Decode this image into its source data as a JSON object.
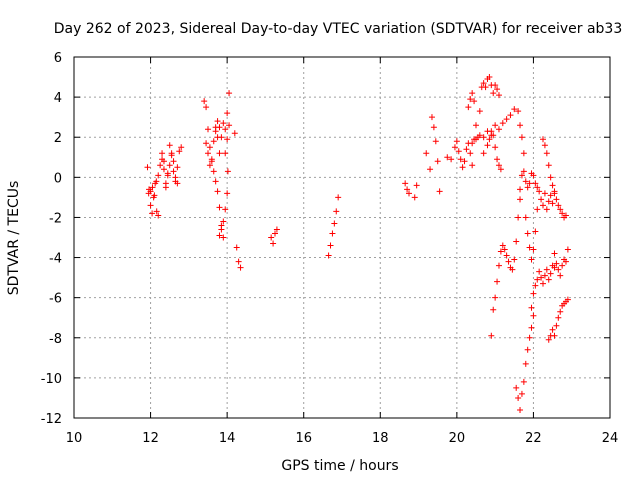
{
  "chart_data": {
    "type": "scatter",
    "title": "Day 262 of 2023, Sidereal Day-to-day VTEC variation (SDTVAR) for receiver ab33",
    "xlabel": "GPS time / hours",
    "ylabel": "SDTVAR / TECUs",
    "xlim": [
      10,
      24
    ],
    "ylim": [
      -12,
      6
    ],
    "xticks": [
      10,
      12,
      14,
      16,
      18,
      20,
      22,
      24
    ],
    "yticks": [
      -12,
      -10,
      -8,
      -6,
      -4,
      -2,
      0,
      2,
      4,
      6
    ],
    "xtick_labels": [
      "10",
      "12",
      "14",
      "16",
      "18",
      "20",
      "22",
      "24"
    ],
    "ytick_labels": [
      "-12",
      "-10",
      "-8",
      "-6",
      "-4",
      "-2",
      "0",
      "2",
      "4",
      "6"
    ],
    "grid": true,
    "marker": "plus",
    "marker_color": "#ff0000",
    "segments": [
      {
        "x": [
          11.92,
          11.96,
          12.0,
          12.04,
          12.08,
          12.12,
          12.16,
          12.2
        ],
        "y": [
          0.5,
          -0.6,
          -1.4,
          -1.8,
          -1.0,
          -0.3,
          -1.7,
          -1.9
        ]
      },
      {
        "x": [
          11.95,
          12.0,
          12.05,
          12.1,
          12.15,
          12.2,
          12.25,
          12.3,
          12.35
        ],
        "y": [
          -0.8,
          -0.7,
          -0.5,
          -0.9,
          -0.2,
          0.1,
          0.6,
          1.2,
          0.8
        ]
      },
      {
        "x": [
          12.3,
          12.35,
          12.4,
          12.45,
          12.5,
          12.55,
          12.6,
          12.65,
          12.7,
          12.75,
          12.8
        ],
        "y": [
          0.9,
          0.4,
          -0.3,
          0.2,
          1.6,
          1.1,
          0.3,
          -0.2,
          0.5,
          1.3,
          1.5
        ]
      },
      {
        "x": [
          12.4,
          12.45,
          12.5,
          12.55,
          12.6,
          12.65,
          12.7
        ],
        "y": [
          -0.5,
          0.1,
          0.6,
          1.2,
          0.8,
          0.0,
          -0.3
        ]
      },
      {
        "x": [
          13.4,
          13.45,
          13.5,
          13.55,
          13.6,
          13.65,
          13.7,
          13.75,
          13.8,
          13.85,
          13.9
        ],
        "y": [
          3.8,
          3.5,
          2.4,
          1.5,
          0.8,
          0.3,
          -0.2,
          -0.7,
          -1.5,
          -2.4,
          -3.0
        ]
      },
      {
        "x": [
          13.45,
          13.5,
          13.55,
          13.6,
          13.65,
          13.7,
          13.75,
          13.8
        ],
        "y": [
          1.7,
          1.2,
          0.6,
          0.9,
          1.8,
          2.5,
          2.0,
          1.2
        ]
      },
      {
        "x": [
          13.7,
          13.75,
          13.8,
          13.85,
          13.9,
          13.95,
          14.0,
          14.05
        ],
        "y": [
          2.3,
          2.8,
          2.5,
          2.0,
          2.7,
          2.4,
          1.9,
          2.6
        ]
      },
      {
        "x": [
          13.8,
          13.85,
          13.9,
          13.95,
          14.0,
          14.02
        ],
        "y": [
          -2.9,
          -2.6,
          -2.2,
          -1.6,
          -0.8,
          0.3
        ]
      },
      {
        "x": [
          13.95,
          14.0,
          14.05
        ],
        "y": [
          1.2,
          3.2,
          4.2
        ]
      },
      {
        "x": [
          14.2,
          14.25,
          14.3,
          14.35
        ],
        "y": [
          2.2,
          -3.5,
          -4.2,
          -4.5
        ]
      },
      {
        "x": [
          15.15,
          15.2,
          15.25,
          15.3
        ],
        "y": [
          -3.0,
          -3.3,
          -2.8,
          -2.6
        ]
      },
      {
        "x": [
          16.65,
          16.7,
          16.75,
          16.8,
          16.85,
          16.9
        ],
        "y": [
          -3.9,
          -3.4,
          -2.8,
          -2.3,
          -1.7,
          -1.0
        ]
      },
      {
        "x": [
          18.65,
          18.7,
          18.75,
          18.9,
          18.95
        ],
        "y": [
          -0.3,
          -0.6,
          -0.8,
          -1.0,
          -0.4
        ]
      },
      {
        "x": [
          19.2,
          19.3,
          19.35,
          19.4,
          19.45,
          19.5,
          19.55
        ],
        "y": [
          1.2,
          0.4,
          3.0,
          2.5,
          1.8,
          0.8,
          -0.7
        ]
      },
      {
        "x": [
          19.75,
          19.85,
          19.95,
          20.0,
          20.05,
          20.1,
          20.15,
          20.2,
          20.25,
          20.3,
          20.35,
          20.4,
          20.45
        ],
        "y": [
          1.0,
          0.9,
          1.5,
          1.8,
          1.3,
          0.9,
          0.5,
          0.8,
          1.4,
          1.7,
          1.2,
          0.6,
          1.9
        ]
      },
      {
        "x": [
          20.3,
          20.35,
          20.4,
          20.45,
          20.5,
          20.55,
          20.6,
          20.65,
          20.7,
          20.75,
          20.8,
          20.85,
          20.9,
          20.95,
          21.0,
          21.05,
          21.1
        ],
        "y": [
          3.5,
          3.9,
          4.2,
          3.8,
          2.6,
          2.0,
          3.3,
          4.5,
          4.7,
          4.5,
          4.9,
          5.0,
          4.6,
          4.2,
          4.6,
          4.4,
          4.1
        ]
      },
      {
        "x": [
          20.4,
          20.5,
          20.6,
          20.7,
          20.8,
          20.9,
          21.0,
          21.1,
          21.2,
          21.3,
          21.4,
          21.5,
          21.6,
          21.65,
          21.7,
          21.75
        ],
        "y": [
          1.7,
          1.9,
          2.1,
          2.0,
          2.3,
          2.1,
          2.6,
          2.4,
          2.7,
          2.9,
          3.1,
          3.4,
          3.3,
          2.6,
          2.0,
          1.2
        ]
      },
      {
        "x": [
          20.7,
          20.8,
          20.85,
          20.9,
          20.95,
          21.0,
          21.05,
          21.1,
          21.15
        ],
        "y": [
          1.2,
          1.6,
          1.9,
          2.3,
          2.1,
          1.5,
          0.9,
          0.6,
          0.4
        ]
      },
      {
        "x": [
          20.9,
          20.95,
          21.0,
          21.05,
          21.1,
          21.15,
          21.2,
          21.25,
          21.3,
          21.35,
          21.4,
          21.45,
          21.5,
          21.55,
          21.6,
          21.65
        ],
        "y": [
          -7.9,
          -6.6,
          -6.0,
          -5.2,
          -4.4,
          -3.7,
          -3.4,
          -3.6,
          -3.9,
          -4.2,
          -4.5,
          -4.6,
          -4.1,
          -3.2,
          -2.0,
          -1.1
        ]
      },
      {
        "x": [
          21.65,
          21.7,
          21.75,
          21.8,
          21.85,
          21.9,
          21.95,
          22.0,
          22.05,
          22.1
        ],
        "y": [
          -0.6,
          0.1,
          0.3,
          -0.2,
          -0.5,
          -0.3,
          0.2,
          0.1,
          -0.3,
          -0.5
        ]
      },
      {
        "x": [
          21.55,
          21.6,
          21.65,
          21.7,
          21.75,
          21.8,
          21.85,
          21.9,
          21.95,
          22.0
        ],
        "y": [
          -10.5,
          -11.0,
          -11.6,
          -10.8,
          -10.2,
          -9.3,
          -8.6,
          -8.0,
          -7.5,
          -6.9
        ]
      },
      {
        "x": [
          21.8,
          21.85,
          21.9,
          21.95,
          22.0,
          22.05,
          22.1,
          22.15
        ],
        "y": [
          -2.0,
          -2.8,
          -3.5,
          -4.1,
          -3.6,
          -2.7,
          -1.6,
          -0.7
        ]
      },
      {
        "x": [
          21.95,
          22.0,
          22.05,
          22.1,
          22.15,
          22.2,
          22.25,
          22.3,
          22.35,
          22.4,
          22.45,
          22.5,
          22.55
        ],
        "y": [
          -6.5,
          -5.8,
          -5.4,
          -5.1,
          -4.7,
          -5.0,
          -5.3,
          -4.9,
          -4.6,
          -5.1,
          -4.8,
          -4.4,
          -3.8
        ]
      },
      {
        "x": [
          22.2,
          22.25,
          22.3,
          22.35,
          22.4,
          22.45,
          22.5,
          22.55,
          22.6,
          22.65,
          22.7,
          22.75,
          22.8,
          22.85
        ],
        "y": [
          -1.1,
          -1.4,
          -0.8,
          -1.6,
          -1.2,
          -0.9,
          -1.3,
          -0.8,
          -1.1,
          -1.4,
          -1.6,
          -1.8,
          -2.0,
          -1.9
        ]
      },
      {
        "x": [
          22.25,
          22.3,
          22.35,
          22.4,
          22.45,
          22.5,
          22.55
        ],
        "y": [
          1.9,
          1.6,
          1.2,
          0.6,
          0.0,
          -0.4,
          -0.7
        ]
      },
      {
        "x": [
          22.4,
          22.45,
          22.5,
          22.55,
          22.6,
          22.65,
          22.7,
          22.75,
          22.8,
          22.85,
          22.9
        ],
        "y": [
          -8.1,
          -7.9,
          -7.6,
          -7.9,
          -7.4,
          -7.0,
          -6.7,
          -6.4,
          -6.3,
          -6.2,
          -6.1
        ]
      },
      {
        "x": [
          22.55,
          22.6,
          22.65,
          22.7,
          22.75,
          22.8,
          22.85,
          22.9
        ],
        "y": [
          -4.5,
          -4.3,
          -4.6,
          -4.9,
          -4.4,
          -4.1,
          -4.2,
          -3.6
        ]
      }
    ]
  }
}
